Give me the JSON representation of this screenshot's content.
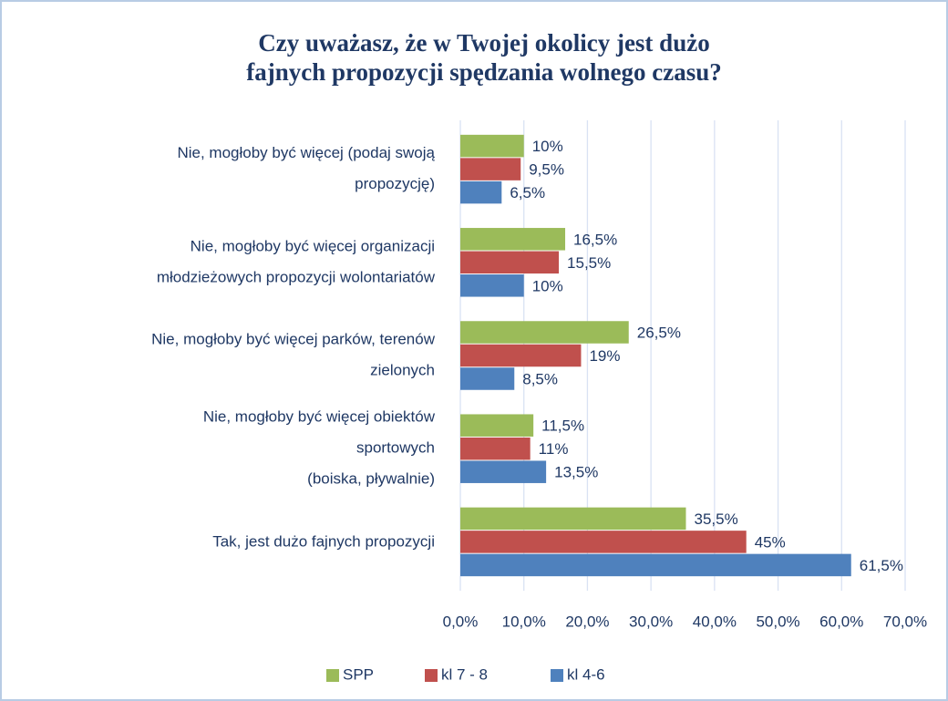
{
  "chart_data": {
    "type": "bar",
    "orientation": "horizontal",
    "title": "Czy uważasz, że w Twojej okolicy jest dużo\nfajnych propozycji spędzania wolnego czasu?",
    "categories": [
      "Nie, mogłoby być więcej (podaj swoją\npropozycję)",
      "Nie, mogłoby być więcej organizacji\nmłodzieżowych propozycji wolontariatów",
      "Nie, mogłoby być więcej parków, terenów\nzielonych",
      "Nie, mogłoby być więcej obiektów\nsportowych\n(boiska, pływalnie)",
      "Tak, jest dużo fajnych propozycji"
    ],
    "series": [
      {
        "name": "SPP",
        "color": "#9bbb59",
        "values": [
          10,
          16.5,
          26.5,
          11.5,
          35.5
        ],
        "value_labels": [
          "10%",
          "16,5%",
          "26,5%",
          "11,5%",
          "35,5%"
        ]
      },
      {
        "name": "kl 7 - 8",
        "color": "#c0504d",
        "values": [
          9.5,
          15.5,
          19,
          11,
          45
        ],
        "value_labels": [
          "9,5%",
          "15,5%",
          "19%",
          "11%",
          "45%"
        ]
      },
      {
        "name": "kl 4-6",
        "color": "#4f81bd",
        "values": [
          6.5,
          10,
          8.5,
          13.5,
          61.5
        ],
        "value_labels": [
          "6,5%",
          "10%",
          "8,5%",
          "13,5%",
          "61,5%"
        ]
      }
    ],
    "xlim": [
      0,
      70
    ],
    "xticks": [
      {
        "value": 0,
        "label": "0,0%"
      },
      {
        "value": 10,
        "label": "10,0%"
      },
      {
        "value": 20,
        "label": "20,0%"
      },
      {
        "value": 30,
        "label": "30,0%"
      },
      {
        "value": 40,
        "label": "40,0%"
      },
      {
        "value": 50,
        "label": "50,0%"
      },
      {
        "value": 60,
        "label": "60,0%"
      },
      {
        "value": 70,
        "label": "70,0%"
      }
    ],
    "grid": true,
    "legend": "bottom"
  }
}
